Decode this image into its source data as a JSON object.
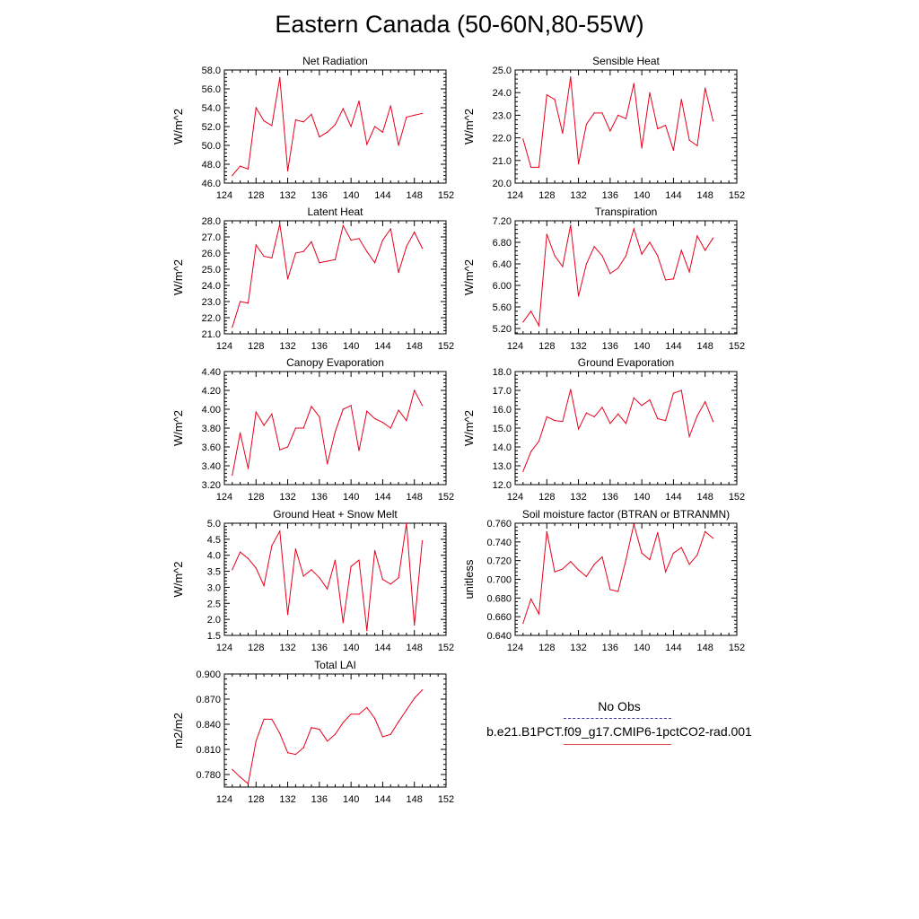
{
  "title": "Eastern Canada (50-60N,80-55W)",
  "colors": {
    "series": "#e8001c",
    "obs_line": "#3a3aa8",
    "axis": "#000000"
  },
  "legend": {
    "obs_label": "No Obs",
    "run_label": "b.e21.B1PCT.f09_g17.CMIP6-1pctCO2-rad.001"
  },
  "chart_data": [
    {
      "type": "line",
      "title": "Net Radiation",
      "ylabel": "W/m^2",
      "xlim": [
        124,
        152
      ],
      "ylim": [
        46,
        58
      ],
      "xticks": [
        "124",
        "128",
        "132",
        "136",
        "140",
        "144",
        "148",
        "152"
      ],
      "yticks": [
        "46.0",
        "48.0",
        "50.0",
        "52.0",
        "54.0",
        "56.0",
        "58.0"
      ],
      "x": [
        125,
        126,
        127,
        128,
        129,
        130,
        131,
        132,
        133,
        134,
        135,
        136,
        137,
        138,
        139,
        140,
        141,
        142,
        143,
        144,
        145,
        146,
        147,
        148,
        149
      ],
      "y": [
        46.8,
        47.8,
        47.5,
        54.0,
        52.6,
        52.1,
        57.2,
        47.3,
        52.7,
        52.5,
        53.3,
        50.9,
        51.4,
        52.2,
        53.9,
        52.0,
        54.7,
        50.1,
        52.0,
        51.4,
        54.2,
        50.0,
        53.0,
        53.2,
        53.4
      ]
    },
    {
      "type": "line",
      "title": "Sensible Heat",
      "ylabel": "W/m^2",
      "xlim": [
        124,
        152
      ],
      "ylim": [
        20,
        25
      ],
      "xticks": [
        "124",
        "128",
        "132",
        "136",
        "140",
        "144",
        "148",
        "152"
      ],
      "yticks": [
        "20.0",
        "21.0",
        "22.0",
        "23.0",
        "24.0",
        "25.0"
      ],
      "x": [
        125,
        126,
        127,
        128,
        129,
        130,
        131,
        132,
        133,
        134,
        135,
        136,
        137,
        138,
        139,
        140,
        141,
        142,
        143,
        144,
        145,
        146,
        147,
        148,
        149
      ],
      "y": [
        21.95,
        20.7,
        20.7,
        23.9,
        23.7,
        22.2,
        24.7,
        20.85,
        22.6,
        23.1,
        23.1,
        22.3,
        23.0,
        22.85,
        24.4,
        21.55,
        24.0,
        22.4,
        22.55,
        21.45,
        23.7,
        21.9,
        21.65,
        24.2,
        22.75
      ]
    },
    {
      "type": "line",
      "title": "Latent Heat",
      "ylabel": "W/m^2",
      "xlim": [
        124,
        152
      ],
      "ylim": [
        21,
        28
      ],
      "xticks": [
        "124",
        "128",
        "132",
        "136",
        "140",
        "144",
        "148",
        "152"
      ],
      "yticks": [
        "21.0",
        "22.0",
        "23.0",
        "24.0",
        "25.0",
        "26.0",
        "27.0",
        "28.0"
      ],
      "x": [
        125,
        126,
        127,
        128,
        129,
        130,
        131,
        132,
        133,
        134,
        135,
        136,
        137,
        138,
        139,
        140,
        141,
        142,
        143,
        144,
        145,
        146,
        147,
        148,
        149
      ],
      "y": [
        21.4,
        23.0,
        22.9,
        26.5,
        25.8,
        25.7,
        27.8,
        24.4,
        26.0,
        26.1,
        26.7,
        25.4,
        25.5,
        25.6,
        27.7,
        26.8,
        26.9,
        26.1,
        25.4,
        26.8,
        27.5,
        24.8,
        26.4,
        27.3,
        26.3
      ]
    },
    {
      "type": "line",
      "title": "Transpiration",
      "ylabel": "W/m^2",
      "xlim": [
        124,
        152
      ],
      "ylim": [
        5.1,
        7.2
      ],
      "xticks": [
        "124",
        "128",
        "132",
        "136",
        "140",
        "144",
        "148",
        "152"
      ],
      "yticks": [
        "5.20",
        "5.60",
        "6.00",
        "6.40",
        "6.80",
        "7.20"
      ],
      "x": [
        125,
        126,
        127,
        128,
        129,
        130,
        131,
        132,
        133,
        134,
        135,
        136,
        137,
        138,
        139,
        140,
        141,
        142,
        143,
        144,
        145,
        146,
        147,
        148,
        149
      ],
      "y": [
        5.32,
        5.52,
        5.25,
        6.95,
        6.55,
        6.35,
        7.12,
        5.8,
        6.4,
        6.72,
        6.55,
        6.22,
        6.32,
        6.55,
        7.05,
        6.58,
        6.8,
        6.55,
        6.1,
        6.12,
        6.65,
        6.25,
        6.92,
        6.65,
        6.88
      ]
    },
    {
      "type": "line",
      "title": "Canopy Evaporation",
      "ylabel": "W/m^2",
      "xlim": [
        124,
        152
      ],
      "ylim": [
        3.2,
        4.4
      ],
      "xticks": [
        "124",
        "128",
        "132",
        "136",
        "140",
        "144",
        "148",
        "152"
      ],
      "yticks": [
        "3.20",
        "3.40",
        "3.60",
        "3.80",
        "4.00",
        "4.20",
        "4.40"
      ],
      "x": [
        125,
        126,
        127,
        128,
        129,
        130,
        131,
        132,
        133,
        134,
        135,
        136,
        137,
        138,
        139,
        140,
        141,
        142,
        143,
        144,
        145,
        146,
        147,
        148,
        149
      ],
      "y": [
        3.3,
        3.75,
        3.37,
        3.97,
        3.83,
        3.95,
        3.57,
        3.6,
        3.8,
        3.8,
        4.03,
        3.92,
        3.42,
        3.76,
        4.0,
        4.04,
        3.56,
        3.98,
        3.9,
        3.86,
        3.8,
        3.99,
        3.88,
        4.2,
        4.04
      ]
    },
    {
      "type": "line",
      "title": "Ground Evaporation",
      "ylabel": "W/m^2",
      "xlim": [
        124,
        152
      ],
      "ylim": [
        12,
        18
      ],
      "xticks": [
        "124",
        "128",
        "132",
        "136",
        "140",
        "144",
        "148",
        "152"
      ],
      "yticks": [
        "12.0",
        "13.0",
        "14.0",
        "15.0",
        "16.0",
        "17.0",
        "18.0"
      ],
      "x": [
        125,
        126,
        127,
        128,
        129,
        130,
        131,
        132,
        133,
        134,
        135,
        136,
        137,
        138,
        139,
        140,
        141,
        142,
        143,
        144,
        145,
        146,
        147,
        148,
        149
      ],
      "y": [
        12.7,
        13.75,
        14.3,
        15.6,
        15.4,
        15.35,
        17.05,
        14.95,
        15.8,
        15.6,
        16.1,
        15.25,
        15.75,
        15.25,
        16.6,
        16.2,
        16.5,
        15.5,
        15.4,
        16.85,
        17.0,
        14.55,
        15.65,
        16.4,
        15.35
      ]
    },
    {
      "type": "line",
      "title": "Ground Heat + Snow Melt",
      "ylabel": "W/m^2",
      "xlim": [
        124,
        152
      ],
      "ylim": [
        1.5,
        5.0
      ],
      "xticks": [
        "124",
        "128",
        "132",
        "136",
        "140",
        "144",
        "148",
        "152"
      ],
      "yticks": [
        "1.5",
        "2.0",
        "2.5",
        "3.0",
        "3.5",
        "4.0",
        "4.5",
        "5.0"
      ],
      "x": [
        125,
        126,
        127,
        128,
        129,
        130,
        131,
        132,
        133,
        134,
        135,
        136,
        137,
        138,
        139,
        140,
        141,
        142,
        143,
        144,
        145,
        146,
        147,
        148,
        149
      ],
      "y": [
        3.55,
        4.1,
        3.9,
        3.6,
        3.05,
        4.3,
        4.75,
        2.15,
        4.2,
        3.35,
        3.55,
        3.3,
        2.95,
        3.85,
        1.9,
        3.65,
        3.85,
        1.65,
        4.15,
        3.25,
        3.1,
        3.3,
        5.0,
        1.82,
        4.45
      ]
    },
    {
      "type": "line",
      "title": "Soil moisture factor (BTRAN or BTRANMN)",
      "ylabel": "unitless",
      "xlim": [
        124,
        152
      ],
      "ylim": [
        0.64,
        0.76
      ],
      "xticks": [
        "124",
        "128",
        "132",
        "136",
        "140",
        "144",
        "148",
        "152"
      ],
      "yticks": [
        "0.640",
        "0.660",
        "0.680",
        "0.700",
        "0.720",
        "0.740",
        "0.760"
      ],
      "x": [
        125,
        126,
        127,
        128,
        129,
        130,
        131,
        132,
        133,
        134,
        135,
        136,
        137,
        138,
        139,
        140,
        141,
        142,
        143,
        144,
        145,
        146,
        147,
        148,
        149
      ],
      "y": [
        0.653,
        0.679,
        0.663,
        0.751,
        0.708,
        0.711,
        0.719,
        0.71,
        0.703,
        0.716,
        0.724,
        0.689,
        0.687,
        0.721,
        0.759,
        0.728,
        0.721,
        0.75,
        0.708,
        0.728,
        0.734,
        0.716,
        0.726,
        0.751,
        0.744
      ]
    },
    {
      "type": "line",
      "title": "Total LAI",
      "ylabel": "m2/m2",
      "xlim": [
        124,
        152
      ],
      "ylim": [
        0.765,
        0.9
      ],
      "xticks": [
        "124",
        "128",
        "132",
        "136",
        "140",
        "144",
        "148",
        "152"
      ],
      "yticks": [
        "0.780",
        "0.810",
        "0.840",
        "0.870",
        "0.900"
      ],
      "x": [
        125,
        126,
        127,
        128,
        129,
        130,
        131,
        132,
        133,
        134,
        135,
        136,
        137,
        138,
        139,
        140,
        141,
        142,
        143,
        144,
        145,
        146,
        147,
        148,
        149
      ],
      "y": [
        0.786,
        0.777,
        0.769,
        0.82,
        0.846,
        0.846,
        0.829,
        0.806,
        0.804,
        0.812,
        0.836,
        0.834,
        0.82,
        0.828,
        0.842,
        0.852,
        0.852,
        0.86,
        0.847,
        0.825,
        0.828,
        0.843,
        0.857,
        0.871,
        0.881
      ]
    }
  ]
}
